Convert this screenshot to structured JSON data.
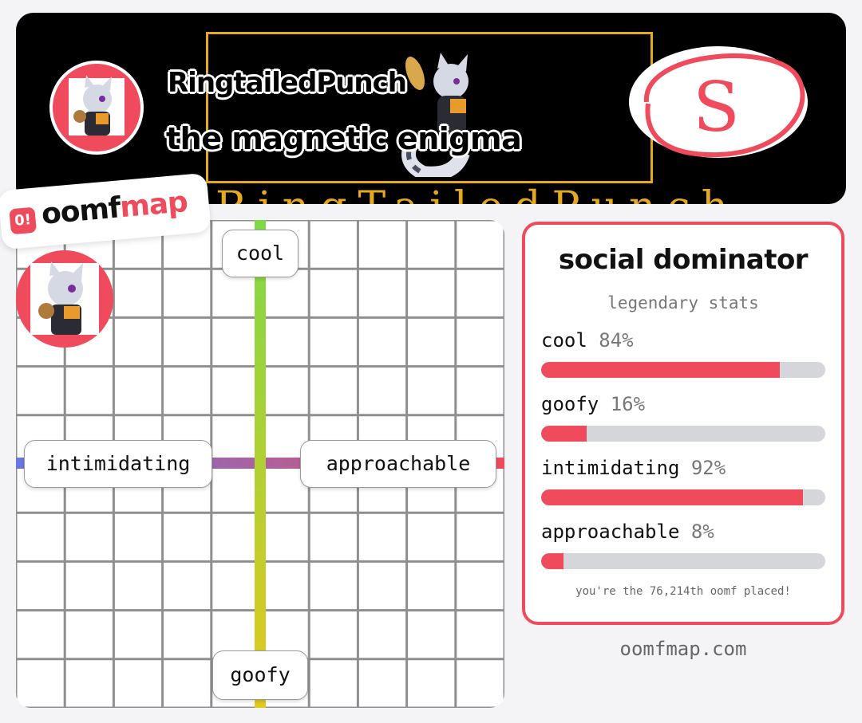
{
  "banner": {
    "name": "RingtailedPunch",
    "title": "the magnetic enigma",
    "background_text": "RingTailedPunch",
    "badge_letter": "S",
    "frame_color": "#e5a91b"
  },
  "logo": {
    "text_a": "oomf",
    "text_b": "map",
    "pin_glyph": "0!"
  },
  "map": {
    "labels": {
      "top": "cool",
      "bottom": "goofy",
      "left": "intimidating",
      "right": "approachable"
    },
    "player_icon": "avatar-icon"
  },
  "stats": {
    "title": "social dominator",
    "subtitle": "legendary stats",
    "items": [
      {
        "label": "cool",
        "pct_text": "84%",
        "value": 0.84
      },
      {
        "label": "goofy",
        "pct_text": "16%",
        "value": 0.16
      },
      {
        "label": "intimidating",
        "pct_text": "92%",
        "value": 0.92
      },
      {
        "label": "approachable",
        "pct_text": "8%",
        "value": 0.08
      }
    ],
    "footer": "you're the 76,214th oomf placed!"
  },
  "site_url": "oomfmap.com",
  "colors": {
    "accent": "#ef4b5c",
    "bar_track": "#d4d6dc",
    "axis_top": "#7ed848",
    "axis_bottom": "#e3c81e",
    "axis_left": "#6878e0",
    "axis_right": "#ef4b5c"
  }
}
